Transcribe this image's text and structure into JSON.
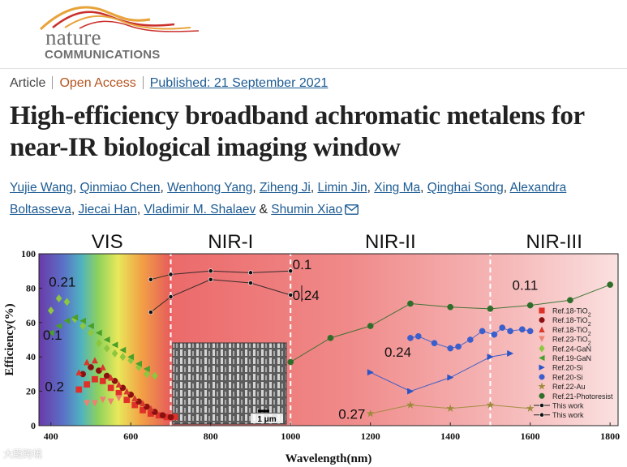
{
  "journal": {
    "logo_word1": "nature",
    "logo_word2": "COMMUNICATIONS",
    "colors": {
      "swoosh_orange": "#e8a33a",
      "swoosh_red": "#c9302c",
      "logo_text": "#6f6f6f"
    }
  },
  "article_meta": {
    "type": "Article",
    "access": "Open Access",
    "published": "Published: 21 September 2021"
  },
  "title": "High-efficiency broadband achromatic metalens for near-IR biological imaging window",
  "authors": [
    "Yujie Wang",
    "Qinmiao Chen",
    "Wenhong Yang",
    "Ziheng Ji",
    "Limin Jin",
    "Xing Ma",
    "Qinghai Song",
    "Alexandra Boltasseva",
    "Jiecai Han",
    "Vladimir M. Shalaev",
    "Shumin Xiao"
  ],
  "author_and": "&",
  "watermark": "大殿跨境",
  "chart_data": {
    "type": "scatter",
    "xlabel": "Wavelength(nm)",
    "ylabel": "Efficiency(%)",
    "xlim": [
      370,
      1820
    ],
    "ylim": [
      0,
      100
    ],
    "xticks": [
      400,
      600,
      800,
      1000,
      1200,
      1400,
      1600,
      1800
    ],
    "yticks": [
      0,
      20,
      40,
      60,
      80,
      100
    ],
    "regions": [
      {
        "label": "VIS",
        "from": 370,
        "to": 700
      },
      {
        "label": "NIR-I",
        "from": 700,
        "to": 1000
      },
      {
        "label": "NIR-II",
        "from": 1000,
        "to": 1500
      },
      {
        "label": "NIR-III",
        "from": 1500,
        "to": 1820
      }
    ],
    "inset_scale_label": "1 μm",
    "series": [
      {
        "name": "Ref.18-TiO2",
        "label": "Ref.18-TiO",
        "sub": "2",
        "marker": "square",
        "color": "#e0302a",
        "x": [
          470,
          490,
          510,
          530,
          550,
          570,
          590,
          610,
          630,
          650,
          670,
          690,
          710
        ],
        "y": [
          21,
          24,
          27,
          26,
          22,
          19,
          15,
          12,
          9,
          7,
          6,
          5,
          5
        ]
      },
      {
        "name": "Ref.18-TiO2",
        "label": "Ref.18-TiO",
        "sub": "2",
        "marker": "circle",
        "color": "#8b1010",
        "x": [
          480,
          500,
          520,
          540,
          560,
          580,
          600,
          620,
          640,
          660,
          680,
          700
        ],
        "y": [
          30,
          34,
          32,
          29,
          26,
          22,
          18,
          14,
          11,
          8,
          6,
          5
        ]
      },
      {
        "name": "Ref.18-TiO2",
        "label": "Ref.18-TiO",
        "sub": "2",
        "marker": "triangle-up",
        "color": "#d8382e",
        "x": [
          470,
          490,
          510,
          530,
          550,
          570,
          590,
          610,
          630,
          650
        ],
        "y": [
          31,
          37,
          38,
          34,
          28,
          24,
          20,
          16,
          13,
          10
        ]
      },
      {
        "name": "Ref.23-TiO2",
        "label": "Ref.23-TiO",
        "sub": "2",
        "marker": "triangle-down",
        "color": "#f08070",
        "x": [
          490,
          510,
          530,
          550,
          570
        ],
        "y": [
          13,
          13,
          15,
          14,
          16
        ]
      },
      {
        "name": "Ref.24-GaN",
        "label": "Ref.24-GaN",
        "sub": "",
        "marker": "diamond",
        "color": "#8dc63f",
        "x": [
          400,
          420,
          440,
          460,
          480,
          500,
          520,
          540,
          560,
          580,
          600,
          620,
          640,
          660
        ],
        "y": [
          67,
          74,
          72,
          62,
          58,
          54,
          48,
          45,
          42,
          40,
          38,
          34,
          30,
          29
        ]
      },
      {
        "name": "Ref.19-GaN",
        "label": "Ref.19-GaN",
        "sub": "",
        "marker": "triangle-left",
        "color": "#4a9f2a",
        "x": [
          400,
          420,
          440,
          460,
          480,
          500,
          520,
          540,
          560,
          580,
          600,
          620,
          640
        ],
        "y": [
          54,
          58,
          61,
          63,
          61,
          58,
          54,
          50,
          47,
          44,
          40,
          36,
          33
        ]
      },
      {
        "name": "Ref.20-Si",
        "label": "Ref.20-Si",
        "sub": "",
        "marker": "triangle-right",
        "color": "#2a55c8",
        "x": [
          1200,
          1300,
          1400,
          1500,
          1550
        ],
        "y": [
          31,
          20,
          28,
          40,
          42
        ]
      },
      {
        "name": "Ref.20-Si",
        "label": "Ref.20-Si",
        "sub": "",
        "marker": "circle",
        "color": "#3a5fcd",
        "x": [
          1300,
          1320,
          1360,
          1400,
          1420,
          1450,
          1480,
          1510,
          1530,
          1550,
          1580,
          1600
        ],
        "y": [
          51,
          52,
          48,
          45,
          46,
          50,
          55,
          53,
          57,
          55,
          56,
          55
        ]
      },
      {
        "name": "Ref.22-Au",
        "label": "Ref.22-Au",
        "sub": "",
        "marker": "star",
        "color": "#9b8a3a",
        "x": [
          1200,
          1300,
          1400,
          1500,
          1600
        ],
        "y": [
          7,
          12,
          10,
          12,
          10
        ]
      },
      {
        "name": "Ref.21-Photoresist",
        "label": "Ref.21-Photoresist",
        "sub": "",
        "marker": "circle",
        "color": "#2f6e2a",
        "x": [
          1000,
          1100,
          1200,
          1300,
          1400,
          1500,
          1600,
          1700,
          1800
        ],
        "y": [
          37,
          51,
          58,
          71,
          69,
          68,
          70,
          73,
          82
        ]
      },
      {
        "name": "This work",
        "label": "This work",
        "sub": "",
        "marker": "circle",
        "color": "#111111",
        "x": [
          650,
          700,
          800,
          900,
          1000
        ],
        "y": [
          85,
          88,
          90,
          89,
          90
        ]
      },
      {
        "name": "This work",
        "label": "This work",
        "sub": "",
        "marker": "circle",
        "color": "#111111",
        "x": [
          650,
          700,
          800,
          900,
          1000
        ],
        "y": [
          66,
          75,
          85,
          83,
          76
        ]
      }
    ],
    "annotations": [
      {
        "text": "0.21",
        "x": 395,
        "y": 81
      },
      {
        "text": "0.1",
        "x": 380,
        "y": 50
      },
      {
        "text": "0.2",
        "x": 385,
        "y": 20
      },
      {
        "text": "0.1",
        "x": 1005,
        "y": 91
      },
      {
        "text": "0.24",
        "x": 1005,
        "y": 73
      },
      {
        "text": "0.11",
        "x": 1555,
        "y": 79
      },
      {
        "text": "0.24",
        "x": 1235,
        "y": 40
      },
      {
        "text": "0.27",
        "x": 1120,
        "y": 4
      }
    ]
  }
}
